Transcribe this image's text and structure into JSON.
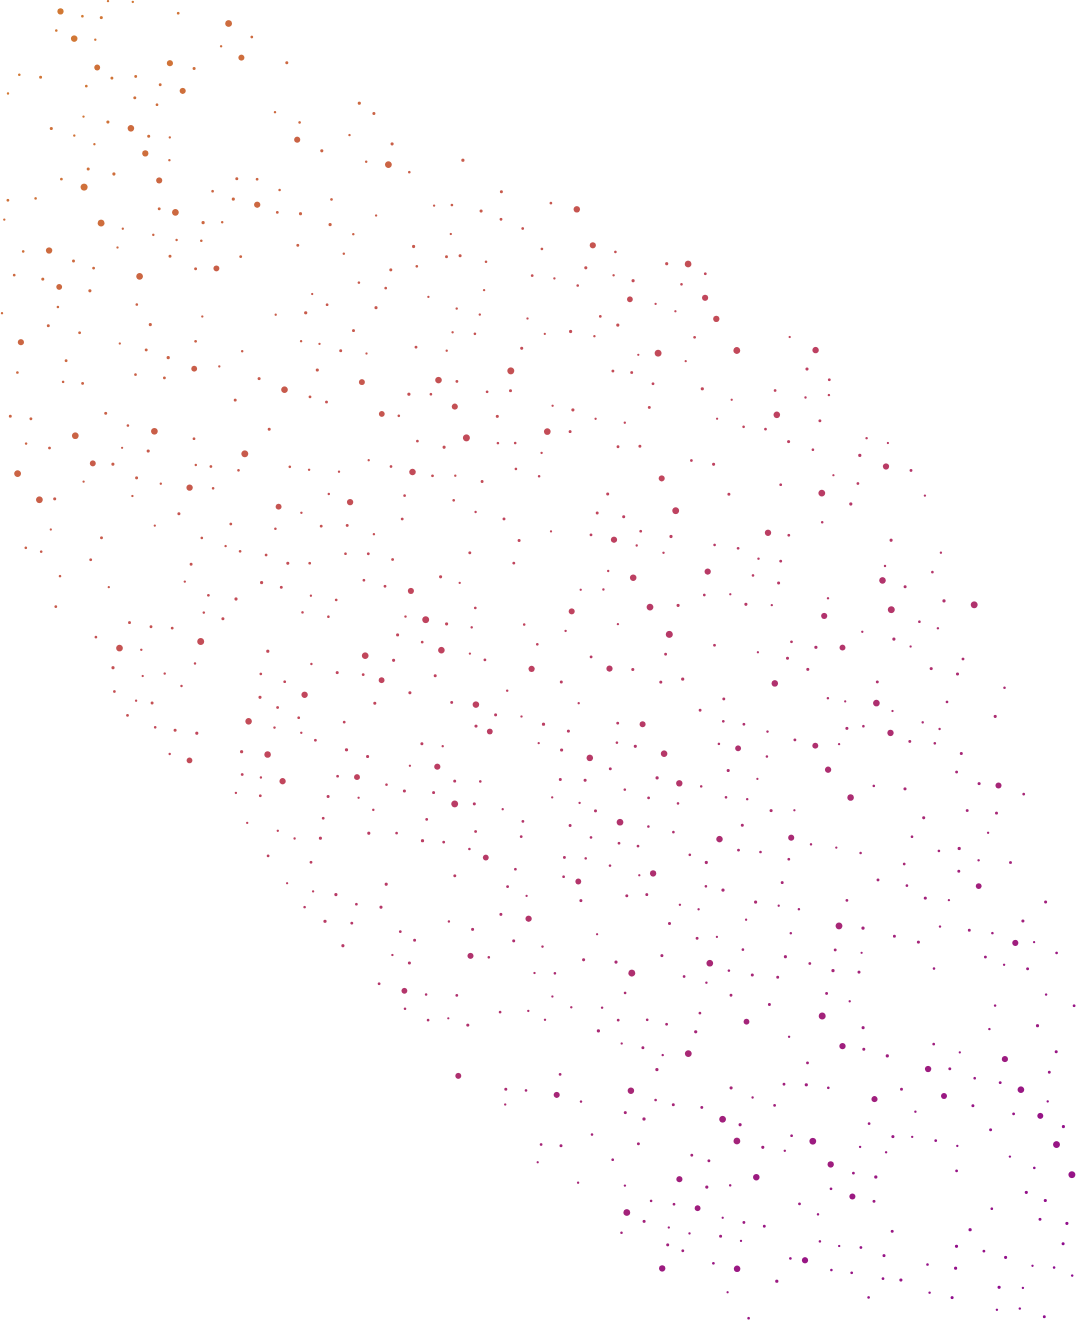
{
  "pattern": {
    "kind": "dot-field",
    "background": "#ffffff",
    "gradient": {
      "start": "#d27a32",
      "mid": "#c0445e",
      "end": "#8e0a8e"
    },
    "lattice": {
      "spacing": 24,
      "angle_deg": 14,
      "jitter": 5,
      "big_dot_every": 4
    },
    "band": {
      "direction": "top-left-to-bottom-right",
      "density": 0.55
    }
  }
}
